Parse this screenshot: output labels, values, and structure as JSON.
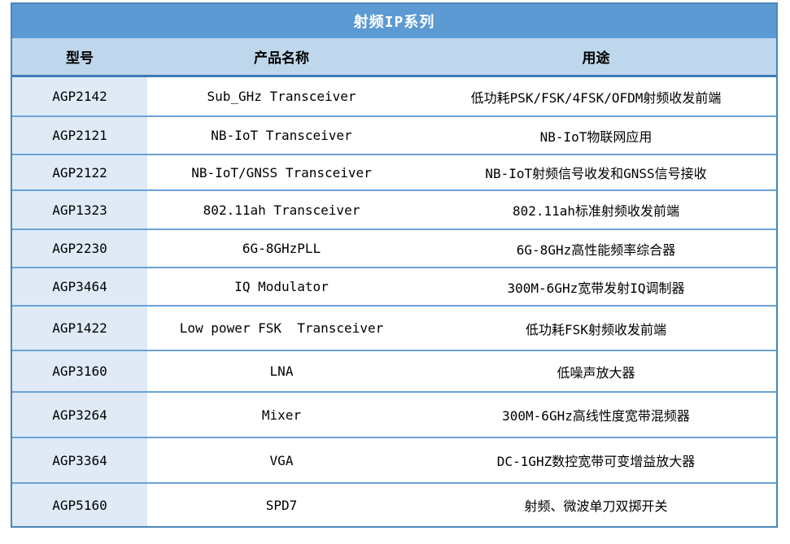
{
  "table": {
    "title": "射频IP系列",
    "columns": {
      "model": "型号",
      "name": "产品名称",
      "usage": "用途"
    },
    "rows": [
      {
        "model": "AGP2142",
        "name": "Sub_GHz Transceiver",
        "usage": "低功耗PSK/FSK/4FSK/OFDM射频收发前端"
      },
      {
        "model": "AGP2121",
        "name": "NB-IoT Transceiver",
        "usage": "NB-IoT物联网应用"
      },
      {
        "model": "AGP2122",
        "name": "NB-IoT/GNSS Transceiver",
        "usage": "NB-IoT射频信号收发和GNSS信号接收"
      },
      {
        "model": "AGP1323",
        "name": "802.11ah Transceiver",
        "usage": "802.11ah标准射频收发前端"
      },
      {
        "model": "AGP2230",
        "name": "6G-8GHzPLL",
        "usage": "6G-8GHz高性能频率综合器"
      },
      {
        "model": "AGP3464",
        "name": "IQ Modulator",
        "usage": "300M-6GHz宽带发射IQ调制器"
      },
      {
        "model": "AGP1422",
        "name": "Low power FSK  Transceiver",
        "usage": "低功耗FSK射频收发前端"
      },
      {
        "model": "AGP3160",
        "name": "LNA",
        "usage": "低噪声放大器"
      },
      {
        "model": "AGP3264",
        "name": "Mixer",
        "usage": "300M-6GHz高线性度宽带混频器"
      },
      {
        "model": "AGP3364",
        "name": "VGA",
        "usage": "DC-1GHZ数控宽带可变增益放大器"
      },
      {
        "model": "AGP5160",
        "name": "SPD7",
        "usage": "射频、微波单刀双掷开关"
      }
    ],
    "colors": {
      "title_bg": "#5b9ad2",
      "header_bg": "#bfd7ec",
      "model_column_bg": "#dfeaf6",
      "outer_border": "#4b86bc",
      "row_divider": "#6ba2d6",
      "header_divider": "#3d7ab8",
      "title_text": "#ffffff",
      "body_text": "#000000"
    }
  }
}
